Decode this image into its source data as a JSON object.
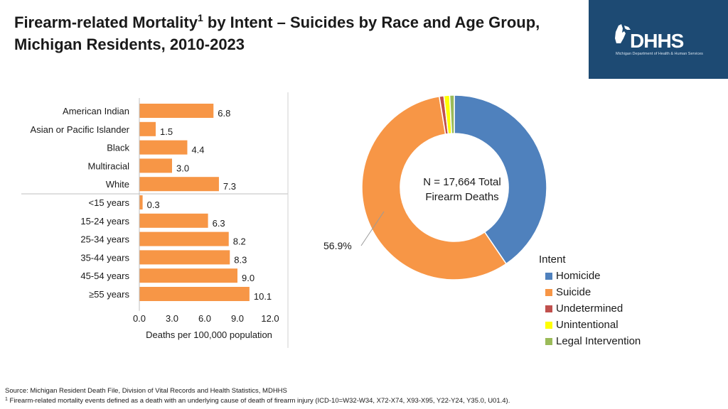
{
  "header": {
    "title_part1": "Firearm-related Mortality",
    "title_sup": "1",
    "title_part2": " by Intent – Suicides by Race and Age Group, Michigan Residents, 2010-2023"
  },
  "logo": {
    "text": "DHHS",
    "subtext": "Michigan Department of Health & Human Services"
  },
  "colors": {
    "bar": "#f79646",
    "homicide": "#4f81bd",
    "suicide": "#f79646",
    "undetermined": "#c0504d",
    "unintentional": "#ffff00",
    "legal_intervention": "#9bbb59",
    "logo_bg": "#1d4a73"
  },
  "chart_data": [
    {
      "type": "bar",
      "orientation": "horizontal",
      "categories": [
        "American Indian",
        "Asian or Pacific Islander",
        "Black",
        "Multiracial",
        "White",
        "<15 years",
        "15-24 years",
        "25-34 years",
        "35-44 years",
        "45-54 years",
        "≥55 years"
      ],
      "values": [
        6.8,
        1.5,
        4.4,
        3.0,
        7.3,
        0.3,
        6.3,
        8.2,
        8.3,
        9.0,
        10.1
      ],
      "value_labels": [
        "6.8",
        "1.5",
        "4.4",
        "3.0",
        "7.3",
        "0.3",
        "6.3",
        "8.2",
        "8.3",
        "9.0",
        "10.1"
      ],
      "groups": [
        {
          "name": "Race",
          "count": 5
        },
        {
          "name": "Age",
          "count": 6
        }
      ],
      "xlim": [
        0,
        12
      ],
      "xticks": [
        "0.0",
        "3.0",
        "6.0",
        "9.0",
        "12.0"
      ],
      "xtick_values": [
        0,
        3,
        6,
        9,
        12
      ],
      "xlabel": "Deaths per 100,000 population",
      "grid": false
    },
    {
      "type": "pie",
      "donut": true,
      "center_label_line1": "N = 17,664 Total",
      "center_label_line2": "Firearm Deaths",
      "legend_title": "Intent",
      "slices": [
        {
          "name": "Homicide",
          "value": 40.5,
          "color_key": "homicide"
        },
        {
          "name": "Suicide",
          "value": 56.9,
          "color_key": "suicide"
        },
        {
          "name": "Undetermined",
          "value": 0.8,
          "color_key": "undetermined"
        },
        {
          "name": "Unintentional",
          "value": 1.0,
          "color_key": "unintentional"
        },
        {
          "name": "Legal Intervention",
          "value": 0.8,
          "color_key": "legal_intervention"
        }
      ],
      "annotation": "56.9%"
    }
  ],
  "footer": {
    "source": "Source: Michigan Resident Death File, Division of Vital Records and Health Statistics, MDHHS",
    "footnote_sup": "1",
    "footnote_text": " Firearm-related mortality events defined as a death with an underlying cause of death of firearm injury (ICD-10=W32-W34, X72-X74, X93-X95, Y22-Y24, Y35.0, U01.4)."
  }
}
